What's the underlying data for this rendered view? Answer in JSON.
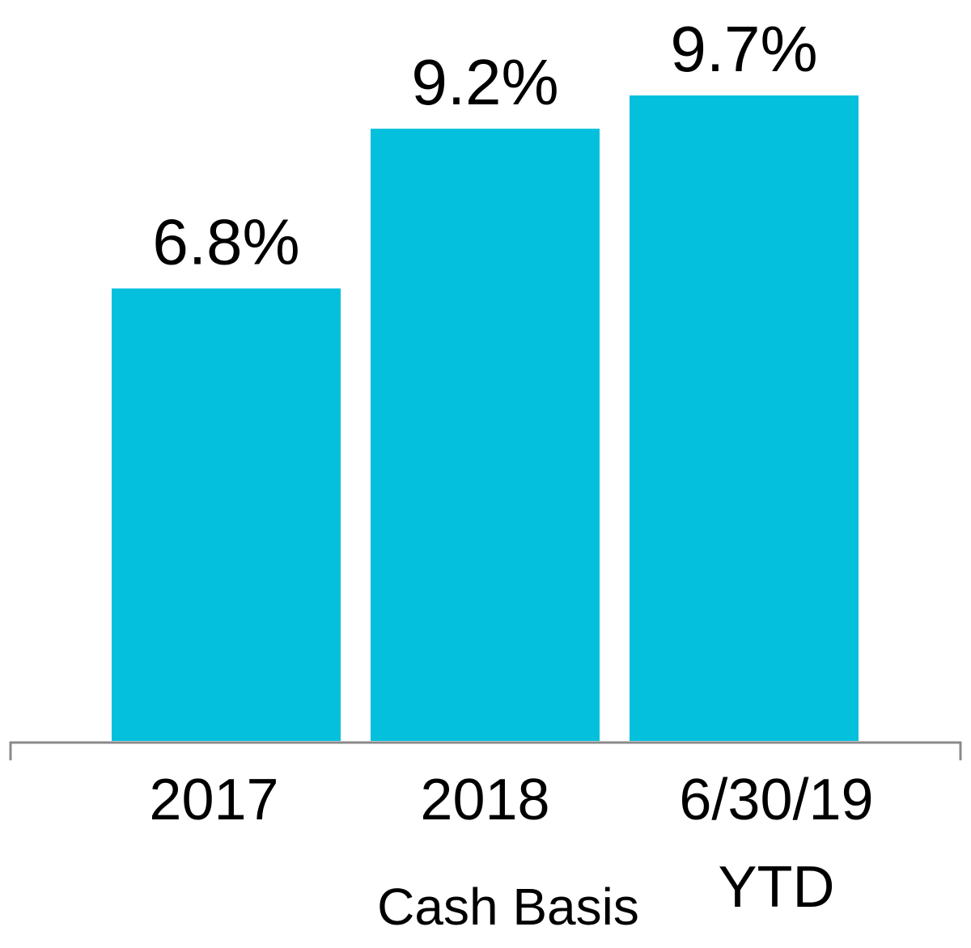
{
  "chart_data": {
    "type": "bar",
    "categories": [
      "2017",
      "2018",
      "6/30/19 YTD"
    ],
    "values": [
      6.8,
      9.2,
      9.7
    ],
    "value_labels": [
      "6.8%",
      "9.2%",
      "9.7%"
    ],
    "color": "#05c0dc",
    "x_label": "Cash Basis"
  }
}
